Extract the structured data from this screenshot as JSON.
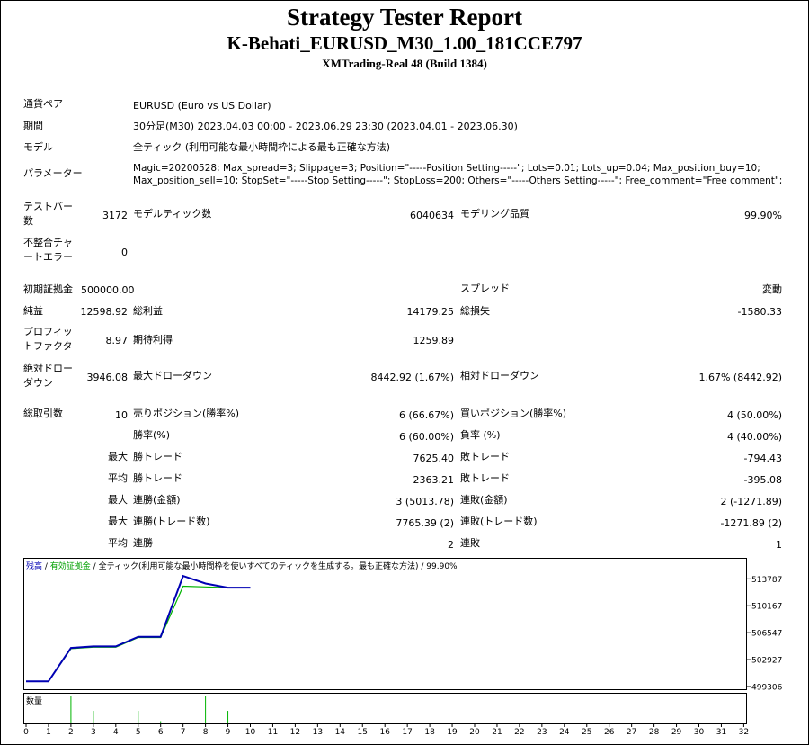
{
  "report": {
    "title": "Strategy Tester Report",
    "subtitle": "K-Behati_EURUSD_M30_1.00_181CCE797",
    "server": "XMTrading-Real 48 (Build 1384)"
  },
  "info": {
    "symbol_label": "通貨ペア",
    "symbol_value": "EURUSD (Euro vs US Dollar)",
    "period_label": "期間",
    "period_value": "30分足(M30) 2023.04.03 00:00 - 2023.06.29 23:30 (2023.04.01 - 2023.06.30)",
    "model_label": "モデル",
    "model_value": "全ティック (利用可能な最小時間枠による最も正確な方法)",
    "params_label": "パラメーター",
    "params_line1": "Magic=20200528; Max_spread=3; Slippage=3; Position=\"-----Position Setting-----\"; Lots=0.01; Lots_up=0.04; Max_position_buy=10;",
    "params_line2": "Max_position_sell=10; StopSet=\"-----Stop Setting-----\"; StopLoss=200; Others=\"-----Others Setting-----\"; Free_comment=\"Free comment\";"
  },
  "stats": {
    "bars_label_1": "テストバー",
    "bars_label_2": "数",
    "bars_value": "3172",
    "ticks_label": "モデルティック数",
    "ticks_value": "6040634",
    "quality_label": "モデリング品質",
    "quality_value": "99.90%",
    "mismatch_label_1": "不整合チャ",
    "mismatch_label_2": "ートエラー",
    "mismatch_value": "0",
    "deposit_label": "初期証拠金",
    "deposit_value": "500000.00",
    "spread_label": "スプレッド",
    "spread_value": "変動",
    "net_label": "純益",
    "net_value": "12598.92",
    "gross_profit_label": "総利益",
    "gross_profit_value": "14179.25",
    "gross_loss_label": "総損失",
    "gross_loss_value": "-1580.33",
    "pf_label_1": "プロフィッ",
    "pf_label_2": "トファクタ",
    "pf_value": "8.97",
    "expected_label": "期待利得",
    "expected_value": "1259.89",
    "abs_dd_label_1": "絶対ドロー",
    "abs_dd_label_2": "ダウン",
    "abs_dd_value": "3946.08",
    "max_dd_label": "最大ドローダウン",
    "max_dd_value": "8442.92 (1.67%)",
    "rel_dd_label": "相対ドローダウン",
    "rel_dd_value": "1.67% (8442.92)",
    "trades_label": "総取引数",
    "trades_value": "10",
    "short_label": "売りポジション(勝率%)",
    "short_value": "6 (66.67%)",
    "long_label": "買いポジション(勝率%)",
    "long_value": "4 (50.00%)",
    "win_pct_label": "勝率(%)",
    "win_pct_value": "6 (60.00%)",
    "loss_pct_label": "負率 (%)",
    "loss_pct_value": "4 (40.00%)",
    "max_label": "最大",
    "avg_label": "平均",
    "largest_win_label": "勝トレード",
    "largest_win_value": "7625.40",
    "largest_loss_label": "敗トレード",
    "largest_loss_value": "-794.43",
    "avg_win_label": "勝トレード",
    "avg_win_value": "2363.21",
    "avg_loss_label": "敗トレード",
    "avg_loss_value": "-395.08",
    "consec_wins_money_label": "連勝(金額)",
    "consec_wins_money_value": "3 (5013.78)",
    "consec_losses_money_label": "連敗(金額)",
    "consec_losses_money_value": "2 (-1271.89)",
    "consec_profit_label": "連勝(トレード数)",
    "consec_profit_value": "7765.39 (2)",
    "consec_loss_label": "連敗(トレード数)",
    "consec_loss_value": "-1271.89 (2)",
    "avg_consec_wins_label": "連勝",
    "avg_consec_wins_value": "2",
    "avg_consec_losses_label": "連敗",
    "avg_consec_losses_value": "1"
  },
  "chart_data": {
    "type": "line",
    "legend": {
      "balance": "残高",
      "equity": "有効証拠金",
      "sep": " / ",
      "model": "全ティック(利用可能な最小時間枠を使いすべてのティックを生成する。最も正確な方法)",
      "quality": " / 99.90%"
    },
    "colors": {
      "balance": "#0000b4",
      "equity": "#00b400",
      "volume": "#00b400"
    },
    "ylim": [
      499306,
      515400
    ],
    "y_ticks": [
      499306,
      502927,
      506547,
      510167,
      513787
    ],
    "x_ticks": [
      0,
      1,
      2,
      3,
      4,
      5,
      6,
      7,
      8,
      9,
      10,
      11,
      12,
      13,
      14,
      15,
      16,
      17,
      18,
      19,
      20,
      21,
      22,
      23,
      24,
      25,
      26,
      27,
      28,
      29,
      30,
      31,
      32
    ],
    "volume_label": "数量",
    "series": [
      {
        "name": "残高",
        "x": [
          0,
          1,
          2,
          3,
          4,
          5,
          6,
          7,
          8,
          9,
          10
        ],
        "values": [
          500000,
          500000,
          504500,
          504700,
          504700,
          506000,
          506000,
          514180,
          513160,
          512600,
          512600
        ]
      },
      {
        "name": "有効証拠金",
        "x": [
          0,
          1,
          2,
          3,
          4,
          5,
          6,
          7,
          8,
          9,
          10
        ],
        "values": [
          500000,
          500000,
          504400,
          504600,
          504600,
          505900,
          505900,
          512800,
          512700,
          512600,
          512600
        ]
      }
    ],
    "volume": {
      "x": [
        2,
        3,
        5,
        6,
        8,
        9
      ],
      "values": [
        1,
        0.45,
        0.45,
        0.08,
        1,
        0.45
      ]
    }
  }
}
